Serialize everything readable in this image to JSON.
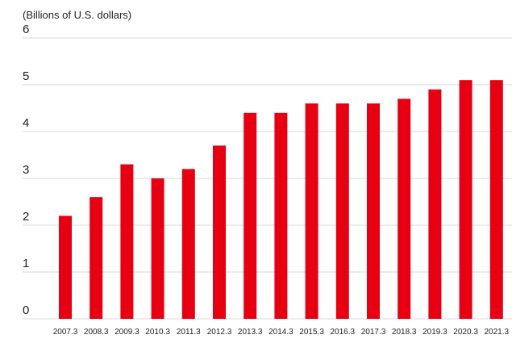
{
  "chart_data": {
    "type": "bar",
    "unit_label": "(Billions of U.S. dollars)",
    "categories": [
      "2007.3",
      "2008.3",
      "2009.3",
      "2010.3",
      "2011.3",
      "2012.3",
      "2013.3",
      "2014.3",
      "2015.3",
      "2016.3",
      "2017.3",
      "2018.3",
      "2019.3",
      "2020.3",
      "2021.3"
    ],
    "values": [
      2.2,
      2.6,
      3.3,
      3.0,
      3.2,
      3.7,
      4.4,
      4.4,
      4.6,
      4.6,
      4.6,
      4.7,
      4.9,
      5.1,
      5.1
    ],
    "yticks": [
      "0",
      "1",
      "2",
      "3",
      "4",
      "5",
      "6"
    ],
    "ylim": [
      0,
      6
    ],
    "grid": true,
    "bar_color": "#e60012",
    "grid_color": "#d9d9d9",
    "text_color": "#222222"
  }
}
